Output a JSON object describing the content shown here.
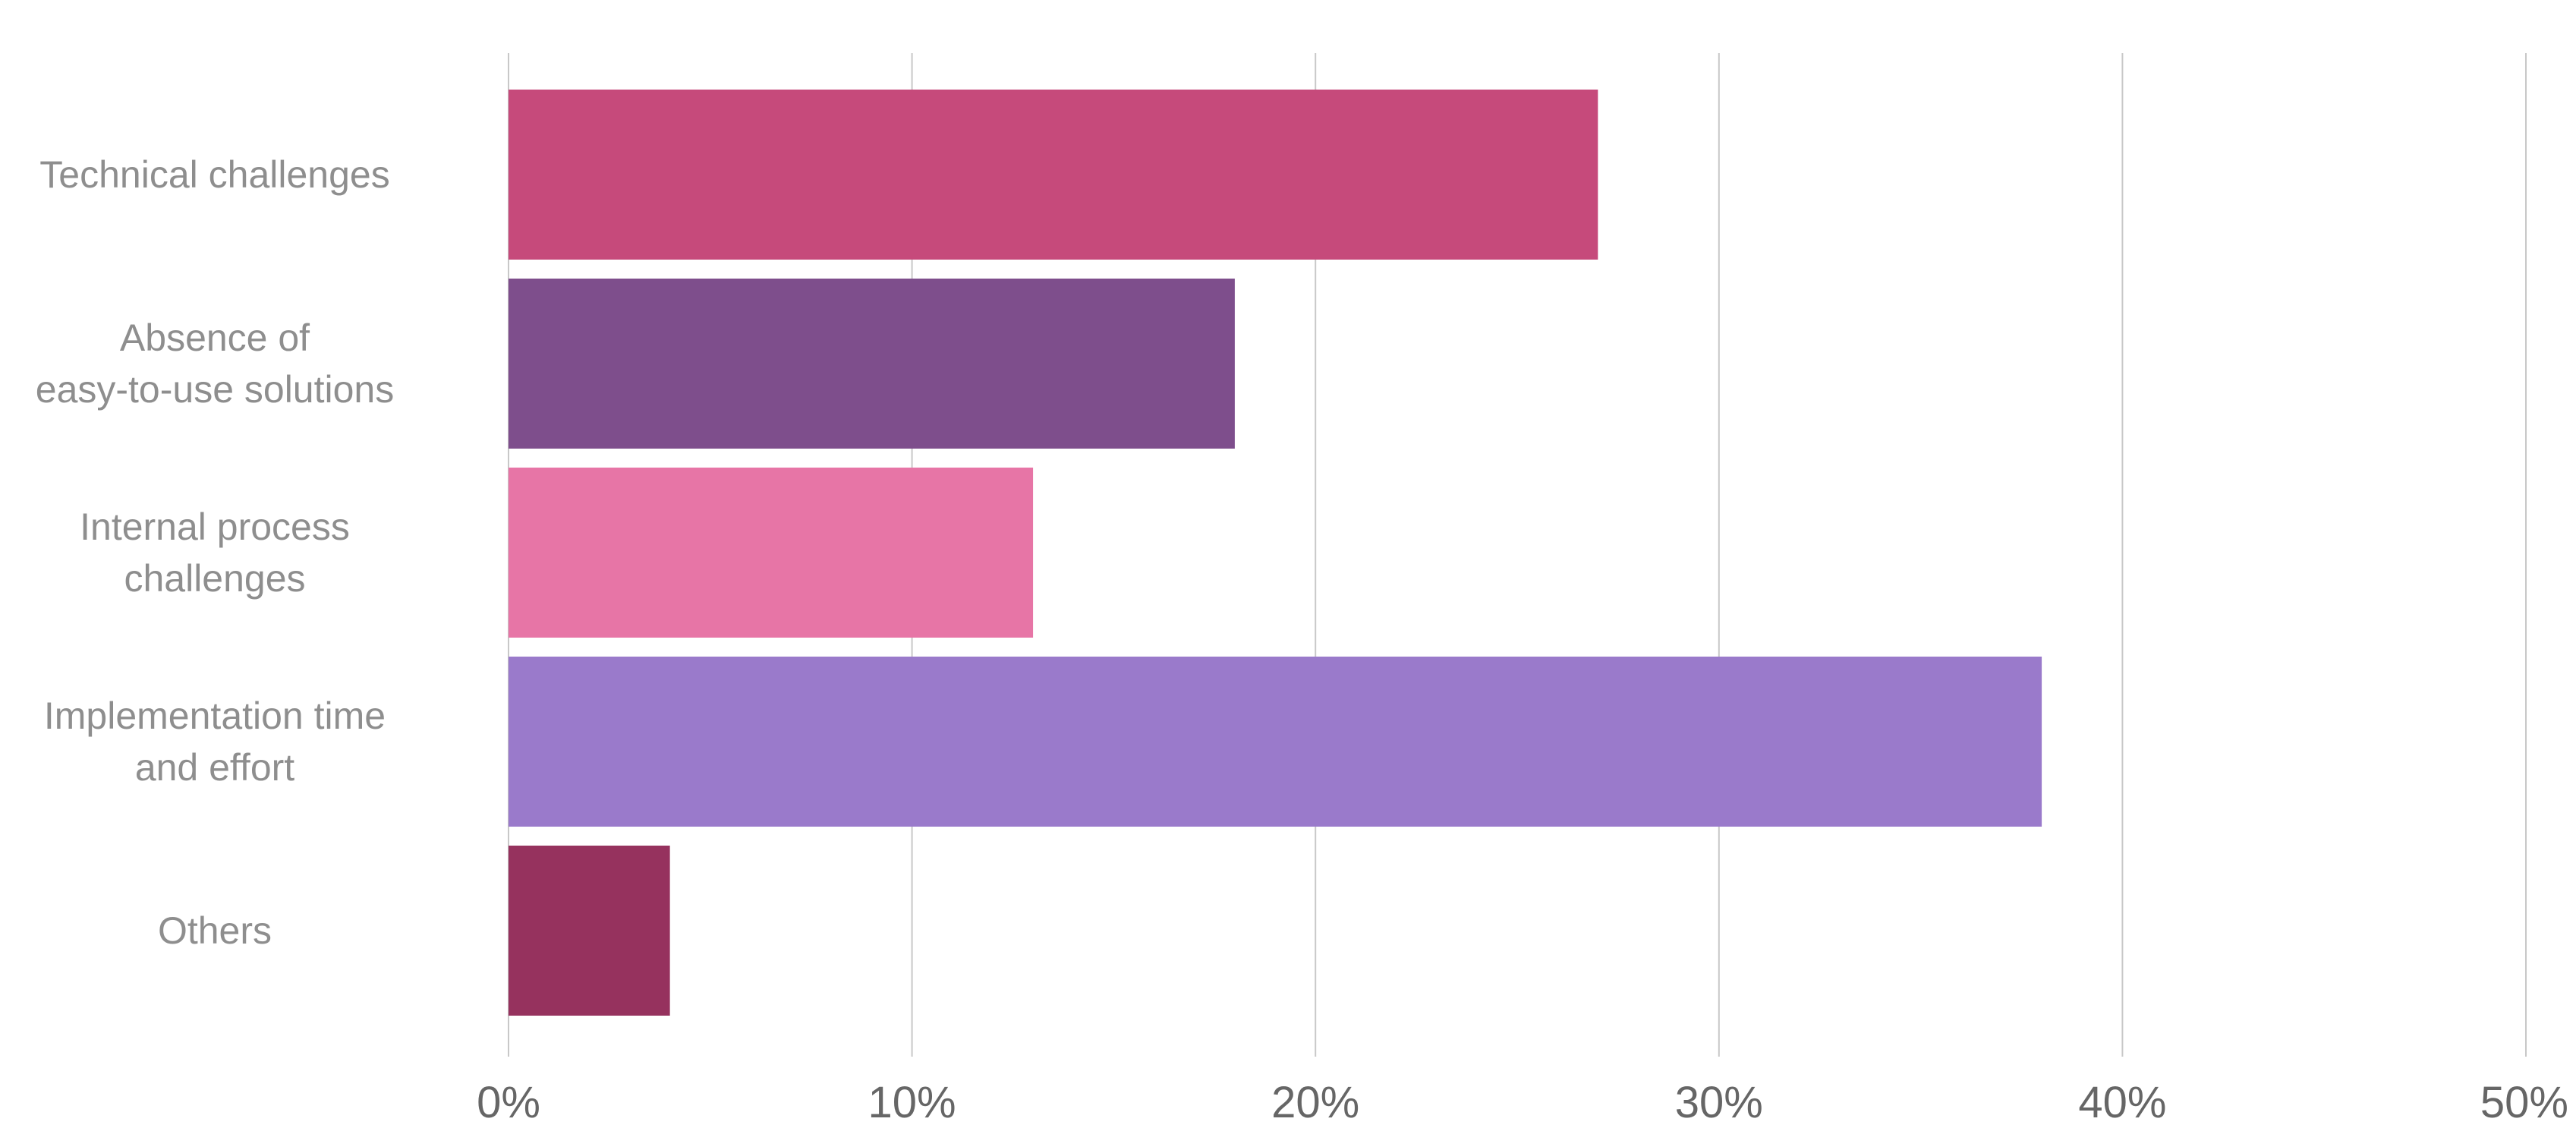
{
  "chart_data": {
    "type": "bar",
    "orientation": "horizontal",
    "categories": [
      [
        "Technical challenges"
      ],
      [
        "Absence of",
        "easy-to-use solutions"
      ],
      [
        "Internal process",
        "challenges"
      ],
      [
        "Implementation time",
        "and effort"
      ],
      [
        "Others"
      ]
    ],
    "values": [
      27,
      18,
      13,
      38,
      4
    ],
    "colors": [
      "#c64a7b",
      "#7e4e8c",
      "#e775a6",
      "#9a7acb",
      "#96325e"
    ],
    "x_ticks": [
      "0%",
      "10%",
      "20%",
      "30%",
      "40%",
      "50%"
    ],
    "xlim": [
      0,
      50
    ],
    "grid": true,
    "title": "",
    "xlabel": "",
    "ylabel": ""
  }
}
